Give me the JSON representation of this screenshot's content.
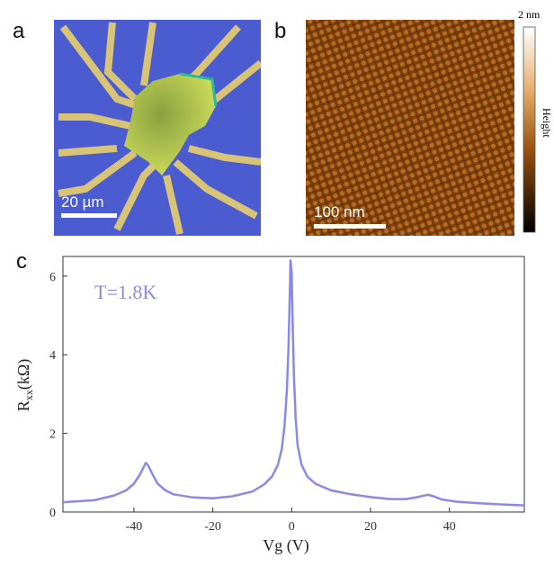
{
  "panel_labels": [
    "a",
    "b",
    "c"
  ],
  "panel_a": {
    "scale_bar": "20 µm"
  },
  "panel_b": {
    "scale_bar": "100 nm",
    "colorbar_max": "2 nm",
    "colorbar_label": "Height"
  },
  "chart_data": {
    "type": "line",
    "x_label": "Vg (V)",
    "y_label": {
      "main": "R",
      "sub": "xx",
      "unit": "(kΩ)"
    },
    "annotation": "T=1.8K",
    "color": "#8a8ae6",
    "x": [
      -58,
      -50,
      -45,
      -42,
      -40,
      -38.5,
      -37.5,
      -37,
      -36.5,
      -35.5,
      -34,
      -32,
      -30,
      -25,
      -20,
      -15,
      -10,
      -7,
      -5,
      -3.5,
      -2.5,
      -1.8,
      -1.2,
      -0.8,
      -0.5,
      -0.3,
      0,
      0.3,
      0.6,
      1,
      1.5,
      2.5,
      4,
      6,
      10,
      15,
      20,
      25,
      29,
      32,
      34.5,
      36,
      38,
      42,
      48,
      54,
      59
    ],
    "values": [
      0.25,
      0.3,
      0.42,
      0.55,
      0.72,
      0.95,
      1.15,
      1.25,
      1.2,
      1.0,
      0.72,
      0.55,
      0.45,
      0.37,
      0.35,
      0.4,
      0.52,
      0.7,
      0.9,
      1.2,
      1.6,
      2.2,
      3.1,
      4.2,
      5.4,
      6.4,
      6.1,
      4.6,
      3.4,
      2.4,
      1.7,
      1.2,
      0.9,
      0.72,
      0.55,
      0.45,
      0.38,
      0.33,
      0.33,
      0.38,
      0.44,
      0.4,
      0.32,
      0.26,
      0.22,
      0.19,
      0.17
    ],
    "xlim": [
      -58,
      59
    ],
    "ylim": [
      0,
      6.5
    ],
    "xticks": [
      -40,
      -20,
      0,
      20,
      40
    ],
    "yticks": [
      0,
      2,
      4,
      6
    ]
  }
}
